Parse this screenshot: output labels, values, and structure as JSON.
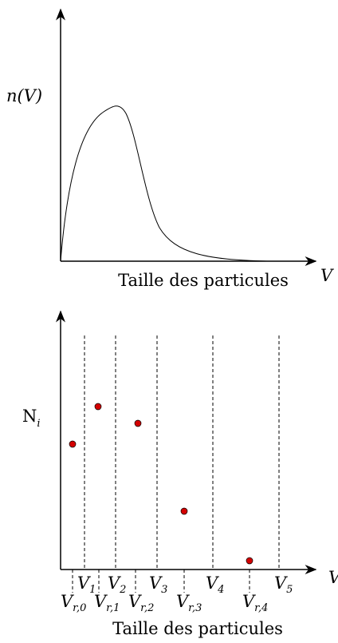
{
  "top": {
    "y_label": "n(V)",
    "x_caption": "Taille des particules",
    "x_symbol": "V"
  },
  "bottom": {
    "y_label": {
      "main": "N",
      "sub": "i"
    },
    "x_caption": "Taille des particules",
    "x_symbol": "V",
    "bounds": [
      {
        "main": "V",
        "sub": "1"
      },
      {
        "main": "V",
        "sub": "2"
      },
      {
        "main": "V",
        "sub": "3"
      },
      {
        "main": "V",
        "sub": "4"
      },
      {
        "main": "V",
        "sub": "5"
      }
    ],
    "representatives": [
      {
        "main": "V",
        "sub": "r,0"
      },
      {
        "main": "V",
        "sub": "r,1"
      },
      {
        "main": "V",
        "sub": "r,2"
      },
      {
        "main": "V",
        "sub": "r,3"
      },
      {
        "main": "V",
        "sub": "r,4"
      }
    ]
  }
}
